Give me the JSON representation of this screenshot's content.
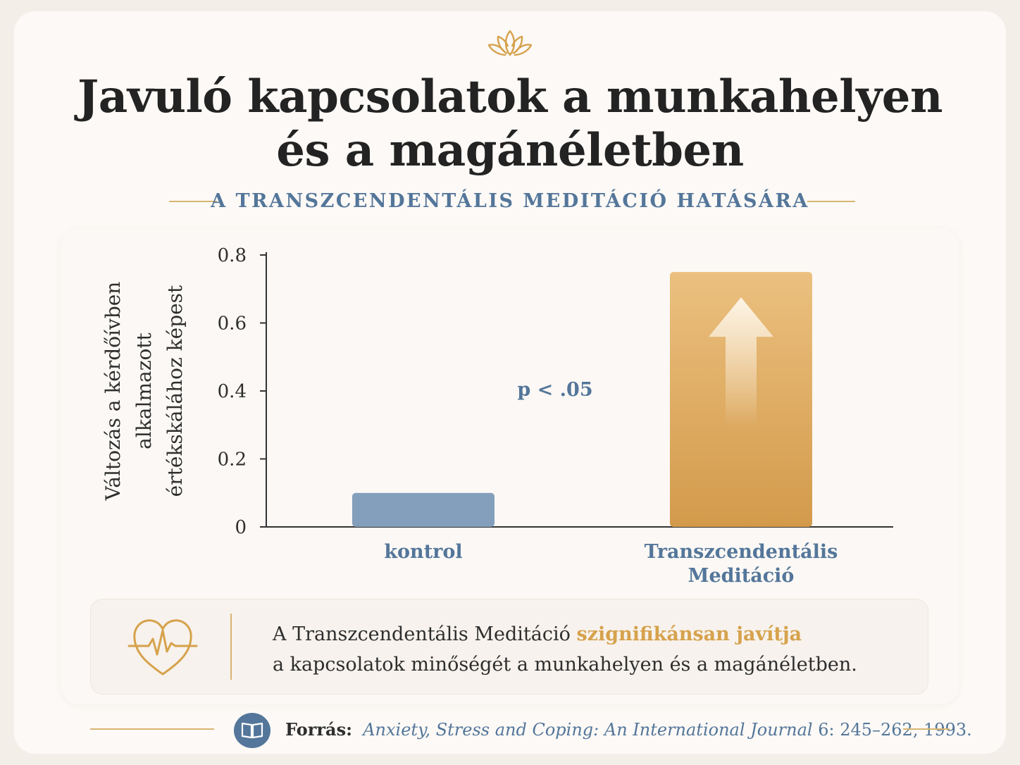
{
  "title_lines": [
    "Javuló kapcsolatok a munkahelyen",
    "és a magánéletben"
  ],
  "subtitle": "A TRANSZCENDENTÁLIS MEDITÁCIÓ HATÁSÁRA",
  "chart_data": {
    "type": "bar",
    "categories": [
      [
        "kontrol"
      ],
      [
        "Transzcendentális",
        "Meditáció"
      ]
    ],
    "values": [
      0.1,
      0.75
    ],
    "colors": [
      "#849fbc",
      "#dba45a"
    ],
    "ylabel_lines": [
      "Változás a kérdőívben",
      "alkalmazott",
      "értékskálához képest"
    ],
    "yticks": [
      "0",
      "0.2",
      "0.4",
      "0.6",
      "0.8"
    ],
    "ylim": [
      0,
      0.8
    ],
    "annotation": "p < .05",
    "grid": false
  },
  "note": {
    "text_before": "A Transzcendentális Meditáció ",
    "highlight": "szignifikánsan javítja",
    "line2": "a kapcsolatok minőségét a munkahelyen és a magánéletben."
  },
  "source": {
    "label": "Forrás:",
    "journal": "Anxiety, Stress and Coping: An International Journal",
    "details": " 6: 245–262, 1993."
  },
  "icons": [
    "lotus-icon",
    "heart-pulse-icon",
    "book-icon",
    "up-arrow-icon"
  ],
  "colors": {
    "accent_gold": "#d8b572",
    "accent_blue": "#54769a"
  }
}
